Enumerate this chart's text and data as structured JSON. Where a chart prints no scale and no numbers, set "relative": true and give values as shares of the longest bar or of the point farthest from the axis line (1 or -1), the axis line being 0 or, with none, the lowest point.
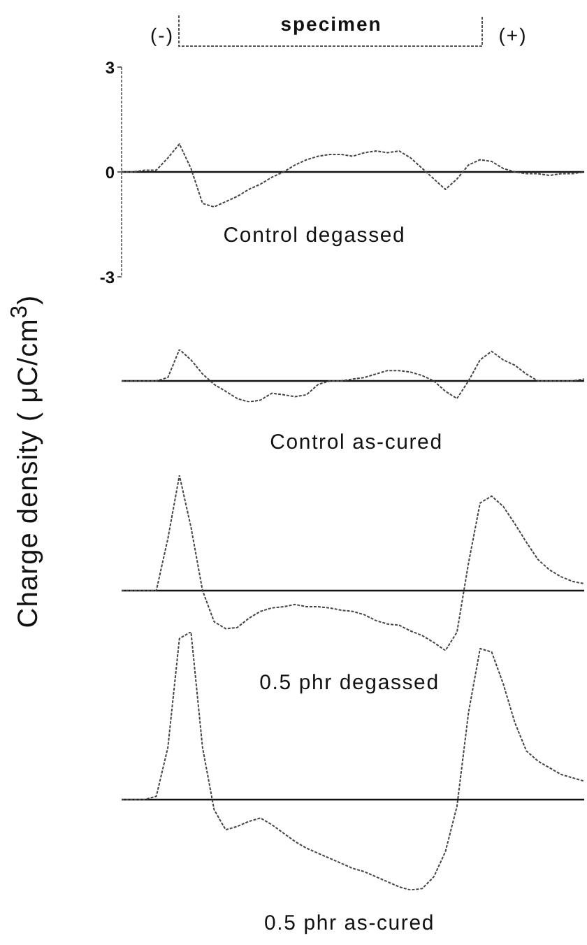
{
  "chart_data": [
    {
      "type": "line",
      "title": "Control degassed",
      "ylabel": "Charge density ( μC/cm$^{3}$)",
      "annotations": [
        "(-)",
        "specimen",
        "(+)"
      ],
      "categories": [
        null,
        null,
        null,
        null,
        null,
        null,
        null,
        null,
        null,
        null,
        null,
        null,
        null,
        null,
        null,
        null,
        null,
        null,
        null,
        null,
        null,
        null,
        null,
        null,
        null,
        null,
        null,
        null,
        null,
        null,
        null,
        null,
        null,
        null,
        null,
        null,
        null,
        null,
        null,
        null,
        null
      ],
      "ylim": [
        -3,
        3
      ],
      "yticks": [
        -3,
        0,
        3
      ],
      "tick_labels": "y",
      "ref_lines": [
        {
          "axis": "y",
          "value": 0,
          "color": "#111111"
        }
      ],
      "line_style": "dotted",
      "series": [
        {
          "color": "#444444",
          "values": [
            0,
            0,
            0.05,
            0.05,
            0.4,
            0.8,
            0.1,
            -0.9,
            -1.0,
            -0.85,
            -0.7,
            -0.5,
            -0.35,
            -0.15,
            0,
            0.2,
            0.35,
            0.45,
            0.5,
            0.5,
            0.45,
            0.55,
            0.6,
            0.55,
            0.6,
            0.4,
            0.1,
            -0.2,
            -0.5,
            -0.2,
            0.2,
            0.35,
            0.3,
            0.1,
            0,
            -0.05,
            -0.05,
            -0.1,
            -0.05,
            -0.05,
            0
          ]
        }
      ]
    },
    {
      "type": "line",
      "title": "Control as-cured",
      "relative": true,
      "categories": [
        null,
        null,
        null,
        null,
        null,
        null,
        null,
        null,
        null,
        null,
        null,
        null,
        null,
        null,
        null,
        null,
        null,
        null,
        null,
        null,
        null,
        null,
        null,
        null,
        null,
        null,
        null,
        null,
        null,
        null,
        null,
        null,
        null,
        null,
        null,
        null,
        null,
        null,
        null,
        null,
        null
      ],
      "tick_labels": false,
      "line_style": "dotted",
      "series": [
        {
          "color": "#444444",
          "values": [
            0,
            0,
            0,
            0,
            0.11,
            1,
            0.67,
            0.22,
            -0.11,
            -0.33,
            -0.56,
            -0.67,
            -0.61,
            -0.39,
            -0.44,
            -0.5,
            -0.44,
            -0.11,
            0,
            0,
            0.06,
            0.11,
            0.22,
            0.33,
            0.33,
            0.28,
            0.17,
            0,
            -0.33,
            -0.56,
            0,
            0.67,
            0.94,
            0.67,
            0.5,
            0.22,
            0,
            0,
            0,
            0,
            0.06
          ]
        }
      ]
    },
    {
      "type": "line",
      "title": "0.5 phr degassed",
      "relative": true,
      "categories": [
        null,
        null,
        null,
        null,
        null,
        null,
        null,
        null,
        null,
        null,
        null,
        null,
        null,
        null,
        null,
        null,
        null,
        null,
        null,
        null,
        null,
        null,
        null,
        null,
        null,
        null,
        null,
        null,
        null,
        null,
        null,
        null,
        null,
        null,
        null,
        null,
        null,
        null,
        null,
        null,
        null
      ],
      "tick_labels": false,
      "line_style": "dotted",
      "series": [
        {
          "color": "#444444",
          "values": [
            0,
            0,
            0,
            0,
            0.45,
            1,
            0.55,
            0,
            -0.27,
            -0.33,
            -0.32,
            -0.24,
            -0.18,
            -0.15,
            -0.14,
            -0.12,
            -0.14,
            -0.14,
            -0.15,
            -0.17,
            -0.18,
            -0.21,
            -0.26,
            -0.29,
            -0.3,
            -0.35,
            -0.39,
            -0.45,
            -0.52,
            -0.36,
            0.24,
            0.76,
            0.82,
            0.73,
            0.58,
            0.42,
            0.27,
            0.18,
            0.12,
            0.08,
            0.06
          ]
        }
      ]
    },
    {
      "type": "line",
      "title": "0.5 phr as-cured",
      "relative": true,
      "categories": [
        null,
        null,
        null,
        null,
        null,
        null,
        null,
        null,
        null,
        null,
        null,
        null,
        null,
        null,
        null,
        null,
        null,
        null,
        null,
        null,
        null,
        null,
        null,
        null,
        null,
        null,
        null,
        null,
        null,
        null,
        null,
        null,
        null,
        null,
        null,
        null,
        null,
        null,
        null,
        null,
        null
      ],
      "tick_labels": false,
      "line_style": "dotted",
      "series": [
        {
          "color": "#444444",
          "values": [
            0,
            0,
            0,
            0.02,
            0.31,
            0.96,
            1,
            0.31,
            -0.06,
            -0.18,
            -0.16,
            -0.13,
            -0.11,
            -0.15,
            -0.2,
            -0.25,
            -0.29,
            -0.32,
            -0.35,
            -0.38,
            -0.41,
            -0.43,
            -0.46,
            -0.49,
            -0.52,
            -0.54,
            -0.53,
            -0.46,
            -0.31,
            -0.04,
            0.52,
            0.9,
            0.88,
            0.69,
            0.46,
            0.29,
            0.23,
            0.19,
            0.15,
            0.13,
            0.11
          ]
        }
      ]
    }
  ]
}
